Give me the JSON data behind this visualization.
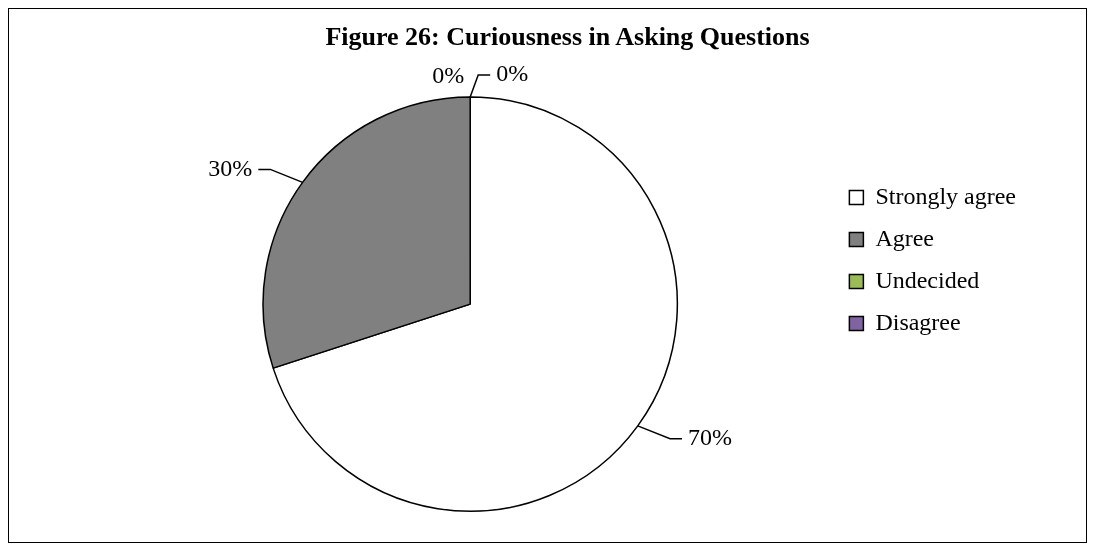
{
  "chart_data": {
    "type": "pie",
    "title": "Figure 26: Curiousness in Asking Questions",
    "categories": [
      "Strongly agree",
      "Agree",
      "Undecided",
      "Disagree"
    ],
    "values": [
      70,
      30,
      0,
      0
    ],
    "colors": [
      "#ffffff",
      "#808080",
      "#9bbb59",
      "#8064a2"
    ],
    "value_labels": [
      "70%",
      "30%",
      "0%",
      "0%"
    ],
    "legend": "right"
  }
}
